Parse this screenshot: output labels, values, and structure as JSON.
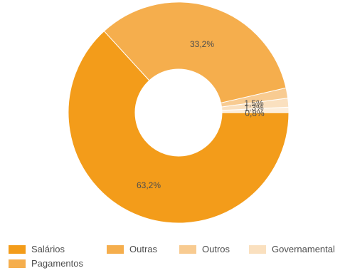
{
  "chart_data": {
    "type": "pie",
    "subtype": "donut",
    "slices": [
      {
        "name": "Salários",
        "value": 63.2,
        "label": "63,2%",
        "color": "#f39c1a"
      },
      {
        "name": "Outras",
        "value": 33.2,
        "label": "33,2%",
        "color": "#f5ae4d"
      },
      {
        "name": "Outros",
        "value": 1.5,
        "label": "1,5%",
        "color": "#f8cb91"
      },
      {
        "name": "Governamental",
        "value": 1.3,
        "label": "1,3%",
        "color": "#fae0bf"
      },
      {
        "name": "",
        "value": 0.8,
        "label": "0,8%",
        "color": "#fdeedb"
      }
    ],
    "legend": {
      "position": "bottom",
      "entries": [
        {
          "text": "Salários",
          "color": "#f39c1a"
        },
        {
          "text": "Outras",
          "color": "#f5ae4d"
        },
        {
          "text": "Outros",
          "color": "#f8cb91"
        },
        {
          "text": "Governamental",
          "color": "#fae0bf"
        },
        {
          "text": "Pagamentos",
          "color": "#f5ae4d"
        }
      ]
    }
  }
}
